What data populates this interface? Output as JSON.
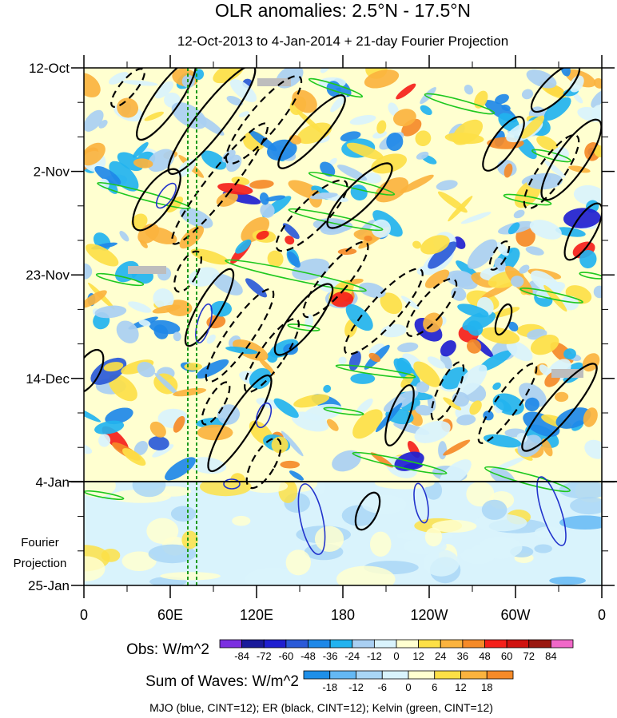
{
  "chart_data": {
    "type": "heatmap",
    "title": "OLR anomalies: 2.5°N - 17.5°N",
    "subtitle": "12-Oct-2013 to 4-Jan-2014 + 21-day Fourier Projection",
    "x_axis": {
      "range_deg_east": [
        0,
        360
      ],
      "tick_positions_deg": [
        0,
        60,
        120,
        180,
        240,
        300,
        360
      ],
      "tick_labels": [
        "0",
        "60E",
        "120E",
        "180",
        "120W",
        "60W",
        "0"
      ]
    },
    "y_axis": {
      "range_days_from_12_oct": [
        0,
        105
      ],
      "tick_positions_days": [
        0,
        21,
        42,
        63,
        84,
        105
      ],
      "tick_labels": [
        "12-Oct",
        "2-Nov",
        "23-Nov",
        "14-Dec",
        "4-Jan",
        "25-Jan"
      ],
      "forecast_start_day": 84
    },
    "forecast_label_lines": [
      "Fourier",
      "Projection"
    ],
    "obs_colorbar": {
      "label": "Obs: W/m^2",
      "levels": [
        "-84",
        "-72",
        "-60",
        "-48",
        "-36",
        "-24",
        "-12",
        "0",
        "12",
        "24",
        "36",
        "48",
        "60",
        "72",
        "84"
      ],
      "colors": [
        "#7b2fe0",
        "#1a1a9a",
        "#1f1fd0",
        "#2a5ad8",
        "#1e88e8",
        "#22b3ef",
        "#a9cff2",
        "#d9f3fc",
        "#ffffd0",
        "#fde046",
        "#fbb33e",
        "#f58a28",
        "#f5201a",
        "#d0120f",
        "#9a1810",
        "#f068c8"
      ]
    },
    "waves_colorbar": {
      "label": "Sum of Waves: W/m^2",
      "levels": [
        "-18",
        "-12",
        "-6",
        "0",
        "6",
        "12",
        "18"
      ],
      "colors": [
        "#1e8fe8",
        "#64b8f4",
        "#a9d6f6",
        "#d9f3fc",
        "#ffffd0",
        "#fde046",
        "#fbb33e",
        "#f58a28"
      ]
    },
    "footer": "MJO (blue, CINT=12); ER (black, CINT=12); Kelvin (green, CINT=12)"
  }
}
